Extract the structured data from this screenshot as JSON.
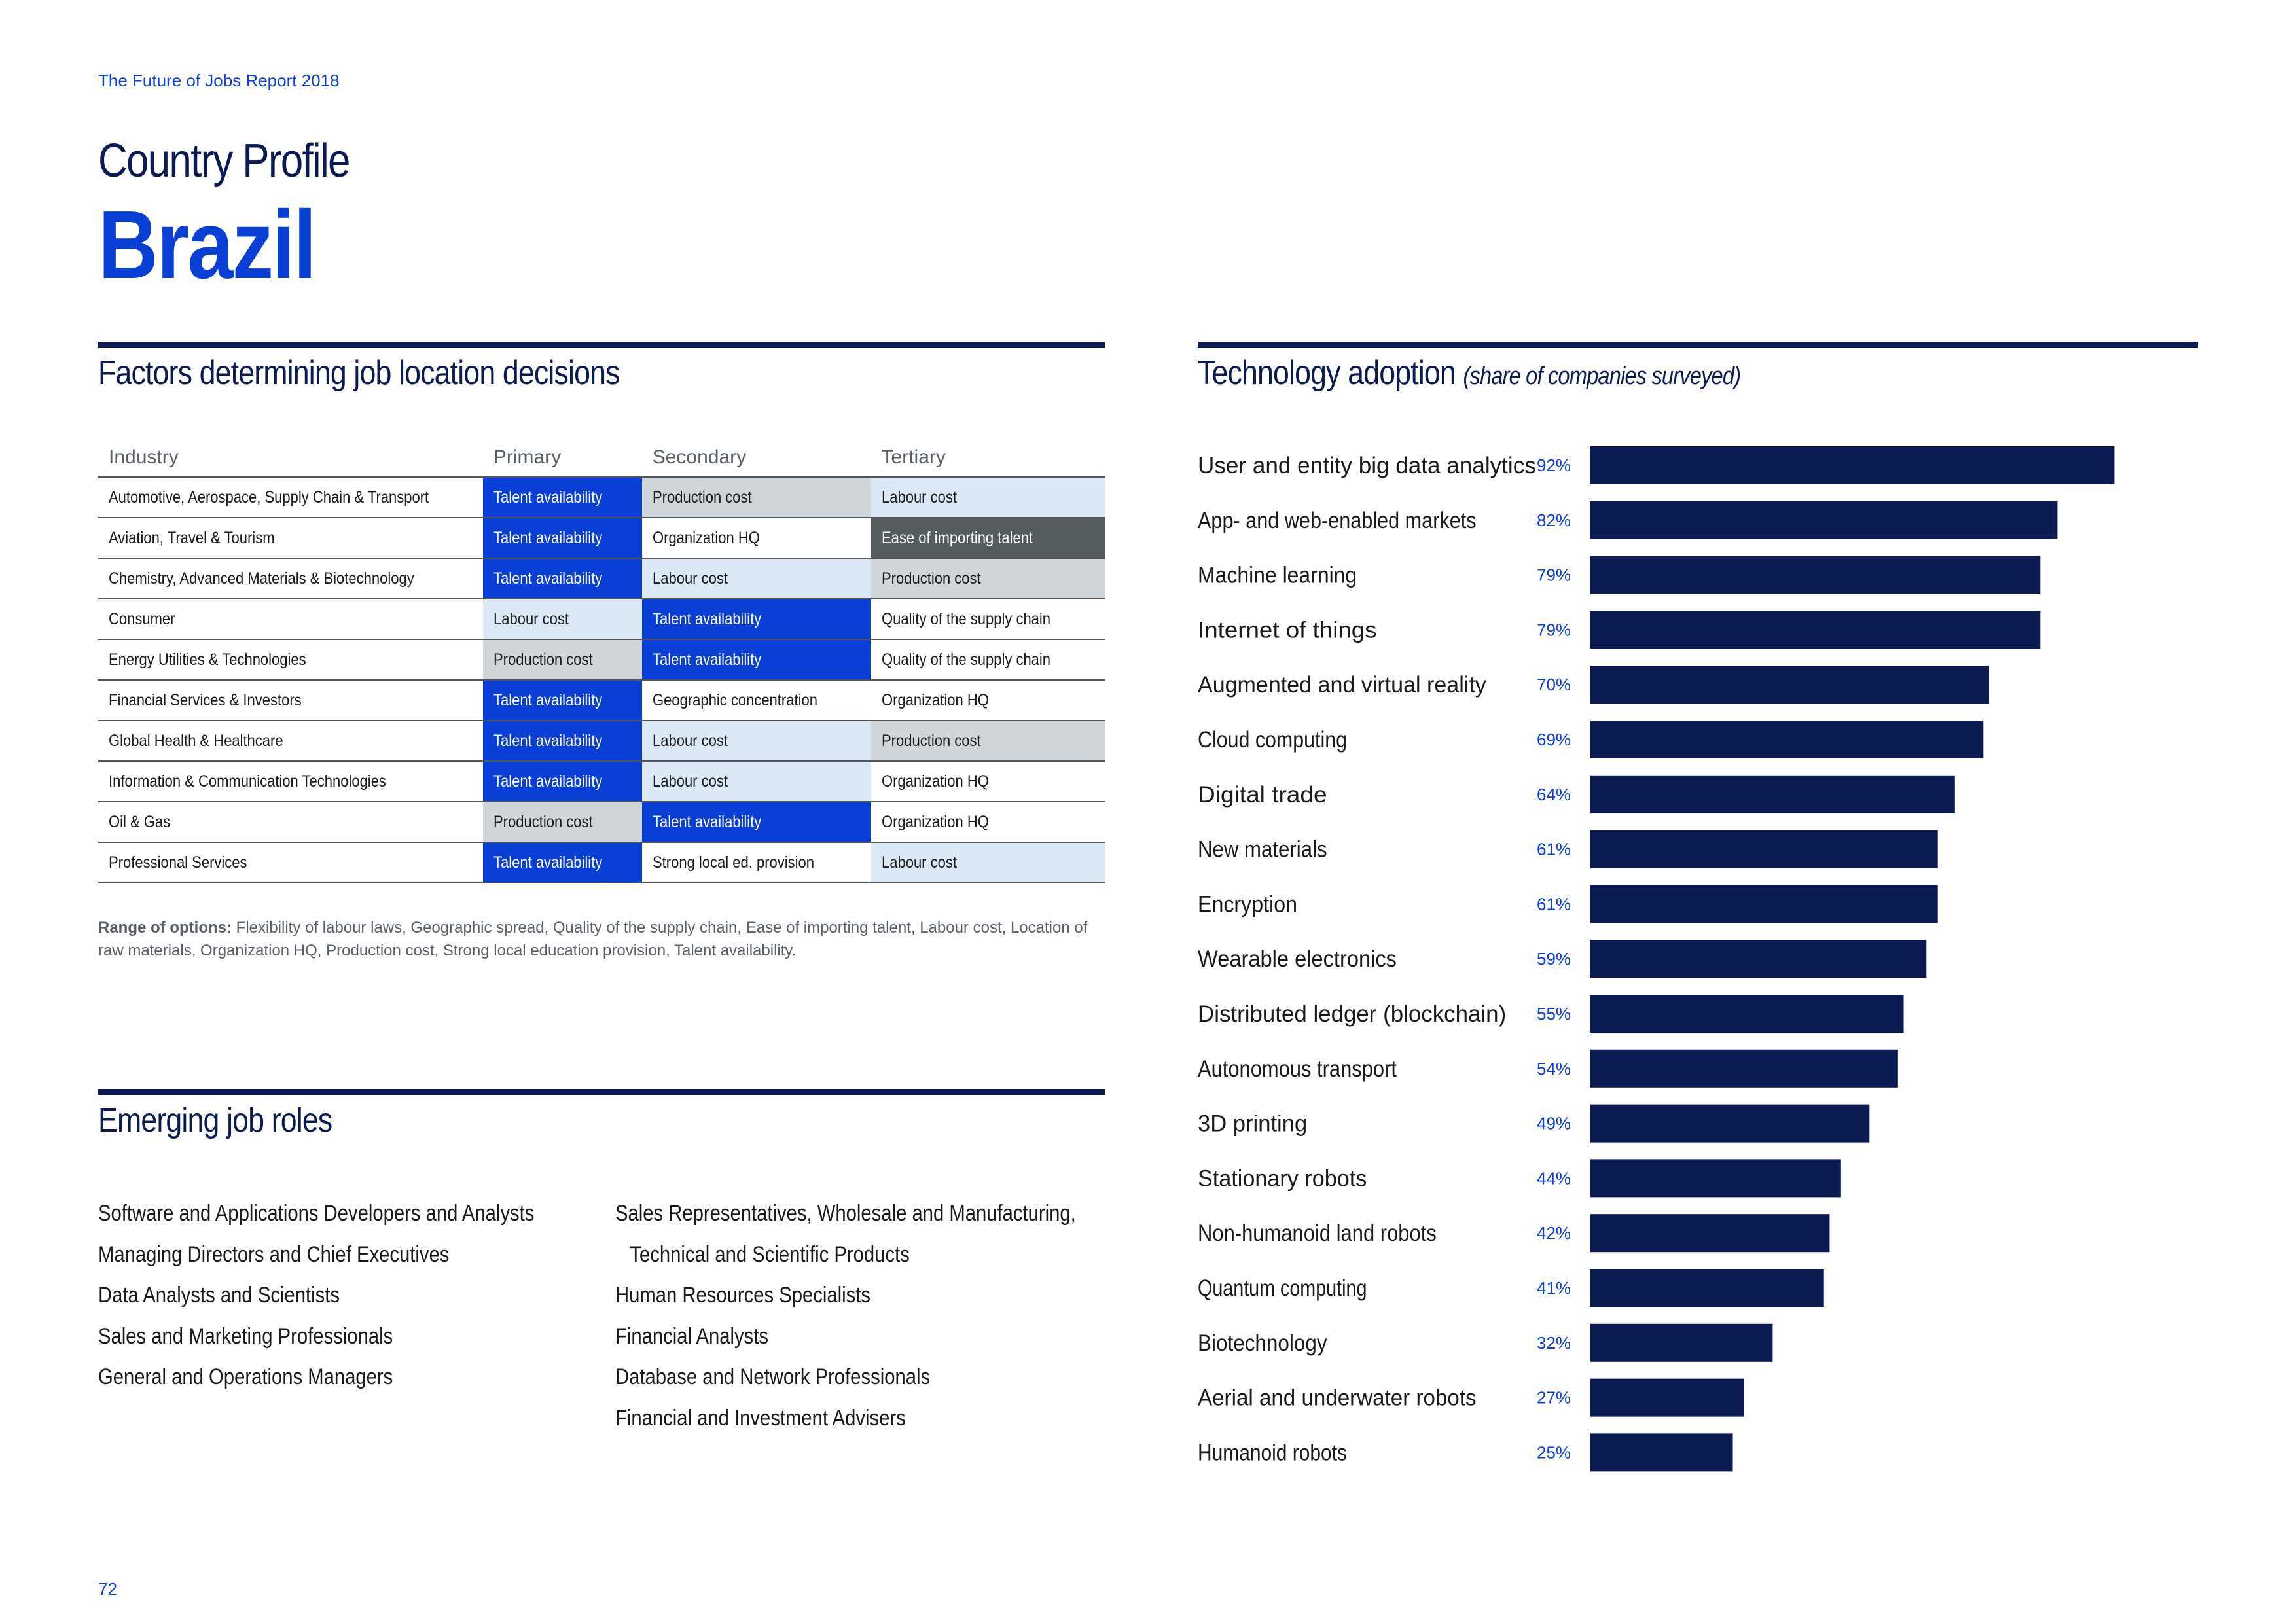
{
  "header": {
    "report_title": "The Future of Jobs Report 2018",
    "profile_label": "Country Profile",
    "country": "Brazil"
  },
  "factors": {
    "title": "Factors determining job location decisions",
    "columns": [
      "Industry",
      "Primary",
      "Secondary",
      "Tertiary"
    ],
    "rows": [
      {
        "industry": "Automotive, Aerospace, Supply Chain & Transport",
        "primary": "Talent availability",
        "secondary": "Production cost",
        "tertiary": "Labour cost"
      },
      {
        "industry": "Aviation, Travel & Tourism",
        "primary": "Talent availability",
        "secondary": "Organization HQ",
        "tertiary": "Ease of importing talent"
      },
      {
        "industry": "Chemistry, Advanced Materials & Biotechnology",
        "primary": "Talent availability",
        "secondary": "Labour cost",
        "tertiary": "Production cost"
      },
      {
        "industry": "Consumer",
        "primary": "Labour cost",
        "secondary": "Talent availability",
        "tertiary": "Quality of the supply chain"
      },
      {
        "industry": "Energy Utilities & Technologies",
        "primary": "Production cost",
        "secondary": "Talent availability",
        "tertiary": "Quality of the supply chain"
      },
      {
        "industry": "Financial Services & Investors",
        "primary": "Talent availability",
        "secondary": "Geographic concentration",
        "tertiary": "Organization HQ"
      },
      {
        "industry": "Global Health & Healthcare",
        "primary": "Talent availability",
        "secondary": "Labour cost",
        "tertiary": "Production cost"
      },
      {
        "industry": "Information & Communication Technologies",
        "primary": "Talent availability",
        "secondary": "Labour cost",
        "tertiary": "Organization HQ"
      },
      {
        "industry": "Oil & Gas",
        "primary": "Production cost",
        "secondary": "Talent availability",
        "tertiary": "Organization HQ"
      },
      {
        "industry": "Professional Services",
        "primary": "Talent availability",
        "secondary": "Strong local ed. provision",
        "tertiary": "Labour cost"
      }
    ],
    "range_label": "Range of options:",
    "range_text": "Flexibility of labour laws, Geographic spread, Quality of the supply chain, Ease of importing talent, Labour cost, Location of raw materials, Organization HQ, Production cost, Strong local education provision, Talent availability.",
    "colors": {
      "Talent availability": "#0a3fd6",
      "Labour cost": "#dbe9f7",
      "Production cost": "#cfd5d8",
      "Ease of importing talent": "#555c60",
      "other": "#ffffff"
    }
  },
  "roles": {
    "title": "Emerging job roles",
    "left": [
      "Software and Applications Developers and Analysts",
      "Managing Directors and Chief Executives",
      "Data Analysts and Scientists",
      "Sales and Marketing Professionals",
      "General and Operations Managers"
    ],
    "right_first_line": "Sales Representatives, Wholesale and Manufacturing,",
    "right_first_continuation": "Technical and Scientific Products",
    "right": [
      "Human Resources Specialists",
      "Financial Analysts",
      "Database and Network Professionals",
      "Financial and Investment Advisers"
    ]
  },
  "tech": {
    "title": "Technology adoption",
    "subtitle": "(share of companies surveyed)"
  },
  "chart_data": {
    "type": "bar",
    "orientation": "horizontal",
    "title": "Technology adoption",
    "subtitle": "(share of companies surveyed)",
    "categories": [
      "User and entity big data analytics",
      "App- and web-enabled markets",
      "Machine learning",
      "Internet of things",
      "Augmented and virtual reality",
      "Cloud computing",
      "Digital trade",
      "New materials",
      "Encryption",
      "Wearable electronics",
      "Distributed ledger (blockchain)",
      "Autonomous transport",
      "3D printing",
      "Stationary robots",
      "Non-humanoid land robots",
      "Quantum computing",
      "Biotechnology",
      "Aerial and underwater robots",
      "Humanoid robots"
    ],
    "values": [
      92,
      82,
      79,
      79,
      70,
      69,
      64,
      61,
      61,
      59,
      55,
      54,
      49,
      44,
      42,
      41,
      32,
      27,
      25
    ],
    "value_labels": [
      "92%",
      "82%",
      "79%",
      "79%",
      "70%",
      "69%",
      "64%",
      "61%",
      "61%",
      "59%",
      "55%",
      "54%",
      "49%",
      "44%",
      "42%",
      "41%",
      "32%",
      "27%",
      "25%"
    ],
    "xlim": [
      0,
      100
    ],
    "bar_color": "#0c1a52",
    "label_color": "#0a3fd6",
    "grid": false,
    "legend": "none"
  },
  "footer": {
    "page_number": "72"
  }
}
